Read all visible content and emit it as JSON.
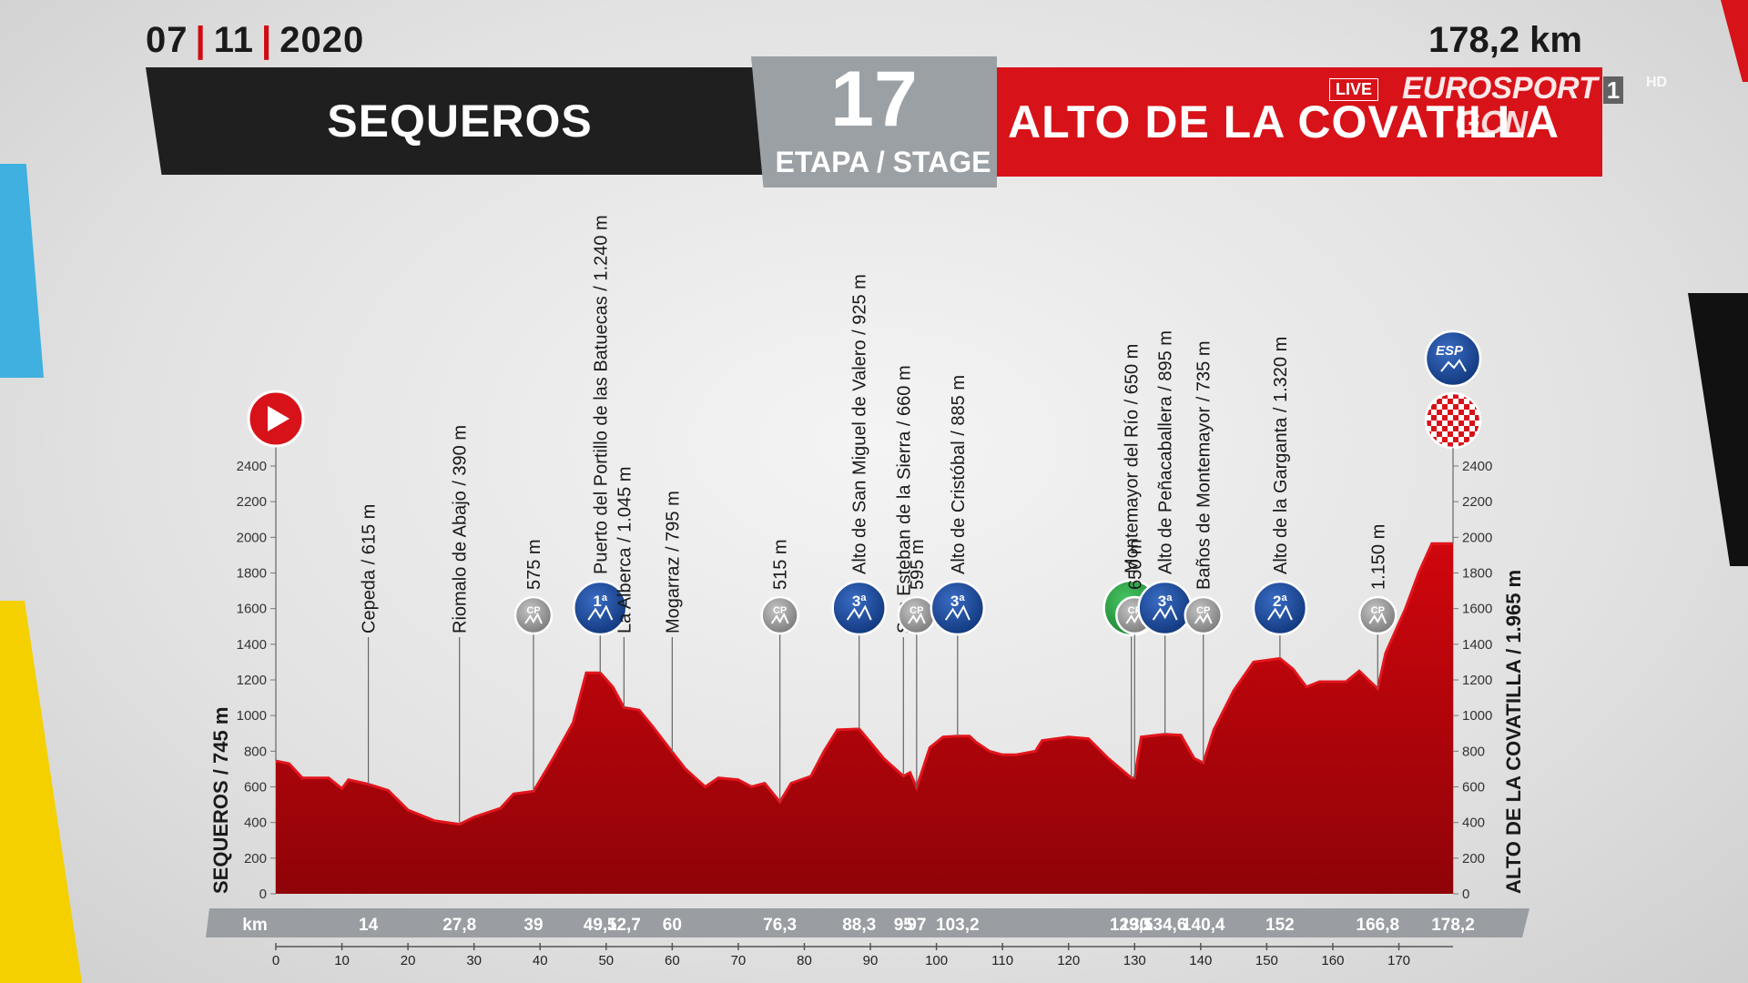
{
  "header": {
    "date_parts": [
      "07",
      "11",
      "2020"
    ],
    "distance": "178,2 km",
    "start": "SEQUEROS",
    "finish": "ALTO DE LA COVATILLA",
    "stage_number": "17",
    "stage_label": "ETAPA / STAGE"
  },
  "broadcast": {
    "live": "LIVE",
    "channel": "EUROSPORT",
    "channel_number": "1",
    "hd": "HD",
    "gcn": "GCN"
  },
  "colors": {
    "accent": "#d81219",
    "profile": "#b8060c",
    "profile_dark": "#8f0308",
    "banner_dark": "#1f1f1f",
    "stage_grey": "#9aa0a4",
    "cat_blue": "#1d4a9e",
    "sprint_green": "#2ea84a",
    "cp_grey": "#9a9a9a"
  },
  "chart_data": {
    "type": "area",
    "xlabel_unit": "km",
    "left_axis_label": "SEQUEROS / 745 m",
    "right_axis_label": "ALTO DE LA COVATILLA / 1.965 m",
    "xlim": [
      0,
      178.2
    ],
    "ylim": [
      0,
      2400
    ],
    "yticks": [
      0,
      200,
      400,
      600,
      800,
      1000,
      1200,
      1400,
      1600,
      1800,
      2000,
      2200,
      2400
    ],
    "xticks": [
      0,
      10,
      20,
      30,
      40,
      50,
      60,
      70,
      80,
      90,
      100,
      110,
      120,
      130,
      140,
      150,
      160,
      170
    ],
    "profile": [
      [
        0,
        745
      ],
      [
        2,
        730
      ],
      [
        4,
        650
      ],
      [
        8,
        650
      ],
      [
        10,
        590
      ],
      [
        11,
        640
      ],
      [
        14,
        615
      ],
      [
        17,
        580
      ],
      [
        20,
        470
      ],
      [
        24,
        410
      ],
      [
        27.8,
        390
      ],
      [
        30,
        430
      ],
      [
        34,
        480
      ],
      [
        36,
        560
      ],
      [
        39,
        575
      ],
      [
        42,
        760
      ],
      [
        45,
        960
      ],
      [
        47,
        1240
      ],
      [
        49.1,
        1240
      ],
      [
        51,
        1160
      ],
      [
        52.7,
        1045
      ],
      [
        55,
        1030
      ],
      [
        57,
        940
      ],
      [
        60,
        795
      ],
      [
        62,
        700
      ],
      [
        65,
        600
      ],
      [
        67,
        650
      ],
      [
        70,
        640
      ],
      [
        72,
        600
      ],
      [
        74,
        620
      ],
      [
        76.3,
        515
      ],
      [
        78,
        620
      ],
      [
        81,
        660
      ],
      [
        83,
        800
      ],
      [
        85,
        920
      ],
      [
        88.3,
        925
      ],
      [
        90,
        850
      ],
      [
        92,
        760
      ],
      [
        95,
        660
      ],
      [
        96,
        680
      ],
      [
        97,
        595
      ],
      [
        99,
        820
      ],
      [
        101,
        880
      ],
      [
        103.2,
        885
      ],
      [
        105,
        885
      ],
      [
        106,
        850
      ],
      [
        108,
        800
      ],
      [
        110,
        780
      ],
      [
        112,
        780
      ],
      [
        115,
        800
      ],
      [
        116,
        860
      ],
      [
        120,
        880
      ],
      [
        123,
        870
      ],
      [
        126,
        760
      ],
      [
        129.5,
        650
      ],
      [
        130,
        650
      ],
      [
        131,
        880
      ],
      [
        134.6,
        895
      ],
      [
        137,
        890
      ],
      [
        139,
        760
      ],
      [
        140.4,
        735
      ],
      [
        142,
        920
      ],
      [
        145,
        1140
      ],
      [
        148,
        1300
      ],
      [
        152,
        1320
      ],
      [
        154,
        1260
      ],
      [
        156,
        1160
      ],
      [
        158,
        1190
      ],
      [
        160,
        1190
      ],
      [
        162,
        1190
      ],
      [
        164,
        1250
      ],
      [
        166.8,
        1150
      ],
      [
        168,
        1350
      ],
      [
        171,
        1600
      ],
      [
        173,
        1800
      ],
      [
        175,
        1965
      ],
      [
        178.2,
        1965
      ]
    ],
    "point_labels": [
      {
        "km": 14,
        "text": "Cepeda / 615 m",
        "marker": "none"
      },
      {
        "km": 27.8,
        "text": "Riomalo de Abajo / 390 m",
        "marker": "none"
      },
      {
        "km": 39,
        "text": "575 m",
        "marker": "cp"
      },
      {
        "km": 49.1,
        "text": "Puerto del Portillo de las Batuecas / 1.240 m",
        "marker": "1ª"
      },
      {
        "km": 52.7,
        "text": "La Alberca / 1.045 m",
        "marker": "none"
      },
      {
        "km": 60,
        "text": "Mogarraz / 795 m",
        "marker": "none"
      },
      {
        "km": 76.3,
        "text": "515 m",
        "marker": "cp"
      },
      {
        "km": 88.3,
        "text": "Alto de San Miguel de Valero / 925 m",
        "marker": "3ª"
      },
      {
        "km": 95,
        "text": "San Esteban de la Sierra / 660 m",
        "marker": "none"
      },
      {
        "km": 97,
        "text": "595 m",
        "marker": "cp"
      },
      {
        "km": 103.2,
        "text": "Alto de Cristóbal / 885 m",
        "marker": "3ª"
      },
      {
        "km": 129.5,
        "text": "Montemayor del Río / 650 m",
        "marker": "S"
      },
      {
        "km": 130,
        "text": "650 m",
        "marker": "cp"
      },
      {
        "km": 134.6,
        "text": "Alto de Peñacaballera / 895 m",
        "marker": "3ª"
      },
      {
        "km": 140.4,
        "text": "Baños de Montemayor / 735 m",
        "marker": "cp"
      },
      {
        "km": 152,
        "text": "Alto de la Garganta / 1.320 m",
        "marker": "2ª"
      },
      {
        "km": 166.8,
        "text": "1.150 m",
        "marker": "cp"
      }
    ],
    "km_bar": [
      "14",
      "27,8",
      "39",
      "49,1",
      "52,7",
      "60",
      "76,3",
      "88,3",
      "95",
      "97",
      "103,2",
      "129,5",
      "130",
      "134,6",
      "140,4",
      "152",
      "166,8",
      "178,2"
    ],
    "km_bar_positions": [
      14,
      27.8,
      39,
      49.1,
      52.7,
      60,
      76.3,
      88.3,
      95,
      97,
      103.2,
      129.5,
      130,
      134.6,
      140.4,
      152,
      166.8,
      178.2
    ],
    "finish_marker": "ESP",
    "marker_texts": {
      "cp": "CP"
    }
  }
}
